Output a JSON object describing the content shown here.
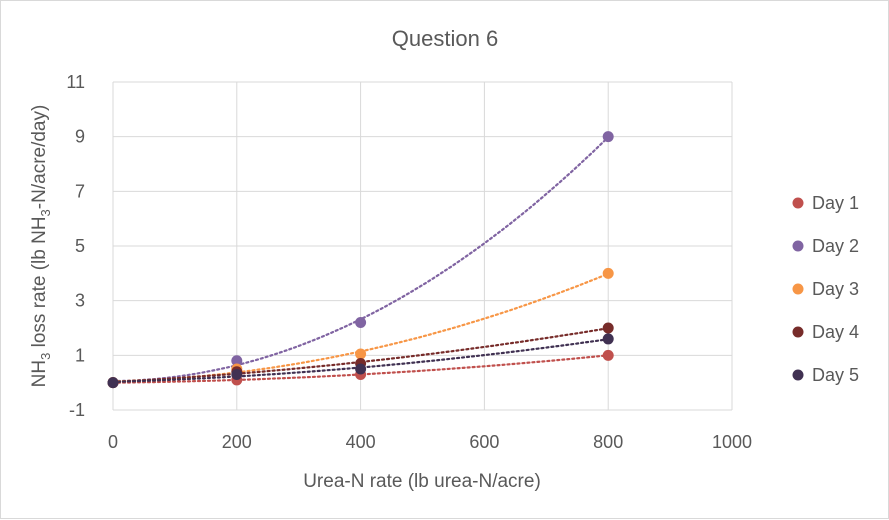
{
  "chart_data": {
    "type": "scatter",
    "title": "Question 6",
    "xlabel": "Urea-N rate (lb urea-N/acre)",
    "ylabel": {
      "prefix": "NH",
      "sub": "3",
      "middle": " loss rate (lb NH",
      "sub2": "3",
      "suffix": "-N/acre/day)"
    },
    "xlim": [
      0,
      1000
    ],
    "ylim": [
      -1,
      11
    ],
    "xticks": [
      0,
      200,
      400,
      600,
      800,
      1000
    ],
    "yticks": [
      -1,
      1,
      3,
      5,
      7,
      9,
      11
    ],
    "grid": true,
    "legend_position": "right",
    "trendline": "polynomial-dotted",
    "x": [
      0,
      200,
      400,
      800
    ],
    "series": [
      {
        "name": "Day 1",
        "color": "#c0504d",
        "values": [
          0,
          0.1,
          0.3,
          1.0
        ]
      },
      {
        "name": "Day 2",
        "color": "#8064a2",
        "values": [
          0,
          0.8,
          2.2,
          9.0
        ]
      },
      {
        "name": "Day 3",
        "color": "#f79646",
        "values": [
          0,
          0.5,
          1.05,
          4.0
        ]
      },
      {
        "name": "Day 4",
        "color": "#772c2a",
        "values": [
          0,
          0.4,
          0.7,
          2.0
        ]
      },
      {
        "name": "Day 5",
        "color": "#403152",
        "values": [
          0,
          0.3,
          0.5,
          1.6
        ]
      }
    ]
  }
}
